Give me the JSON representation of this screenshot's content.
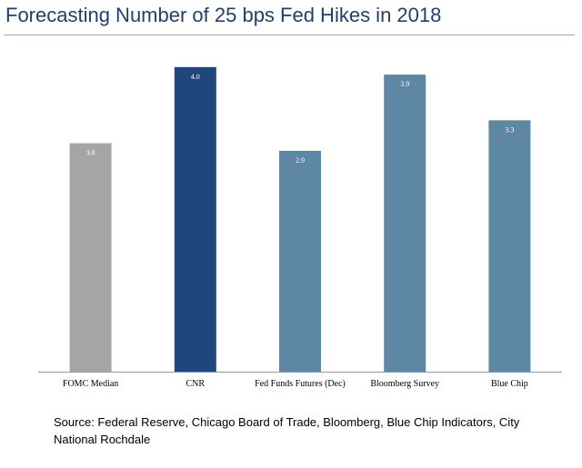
{
  "title": "Forecasting Number of 25 bps Fed Hikes in 2018",
  "source": "Source: Federal Reserve, Chicago Board of Trade, Bloomberg, Blue Chip Indicators, City National Rochdale",
  "colors": {
    "title": "#1f3f6e",
    "fomc": "#a5a5a5",
    "cnr": "#1f477c",
    "other": "#5e87a3",
    "axis": "#999999"
  },
  "chart_data": {
    "type": "bar",
    "title": "Forecasting Number of 25 bps Fed Hikes in 2018",
    "xlabel": "",
    "ylabel": "",
    "ylim": [
      0,
      4.2
    ],
    "grid": false,
    "categories": [
      "FOMC Median",
      "CNR",
      "Fed Funds Futures (Dec)",
      "Bloomberg Survey",
      "Blue Chip"
    ],
    "values": [
      3.0,
      4.0,
      2.9,
      3.9,
      3.3
    ],
    "data_labels": [
      "3.0",
      "4.0",
      "2.9",
      "3.9",
      "3.3"
    ],
    "bar_colors": [
      "#a5a5a5",
      "#1f477c",
      "#5e87a3",
      "#5e87a3",
      "#5e87a3"
    ]
  }
}
